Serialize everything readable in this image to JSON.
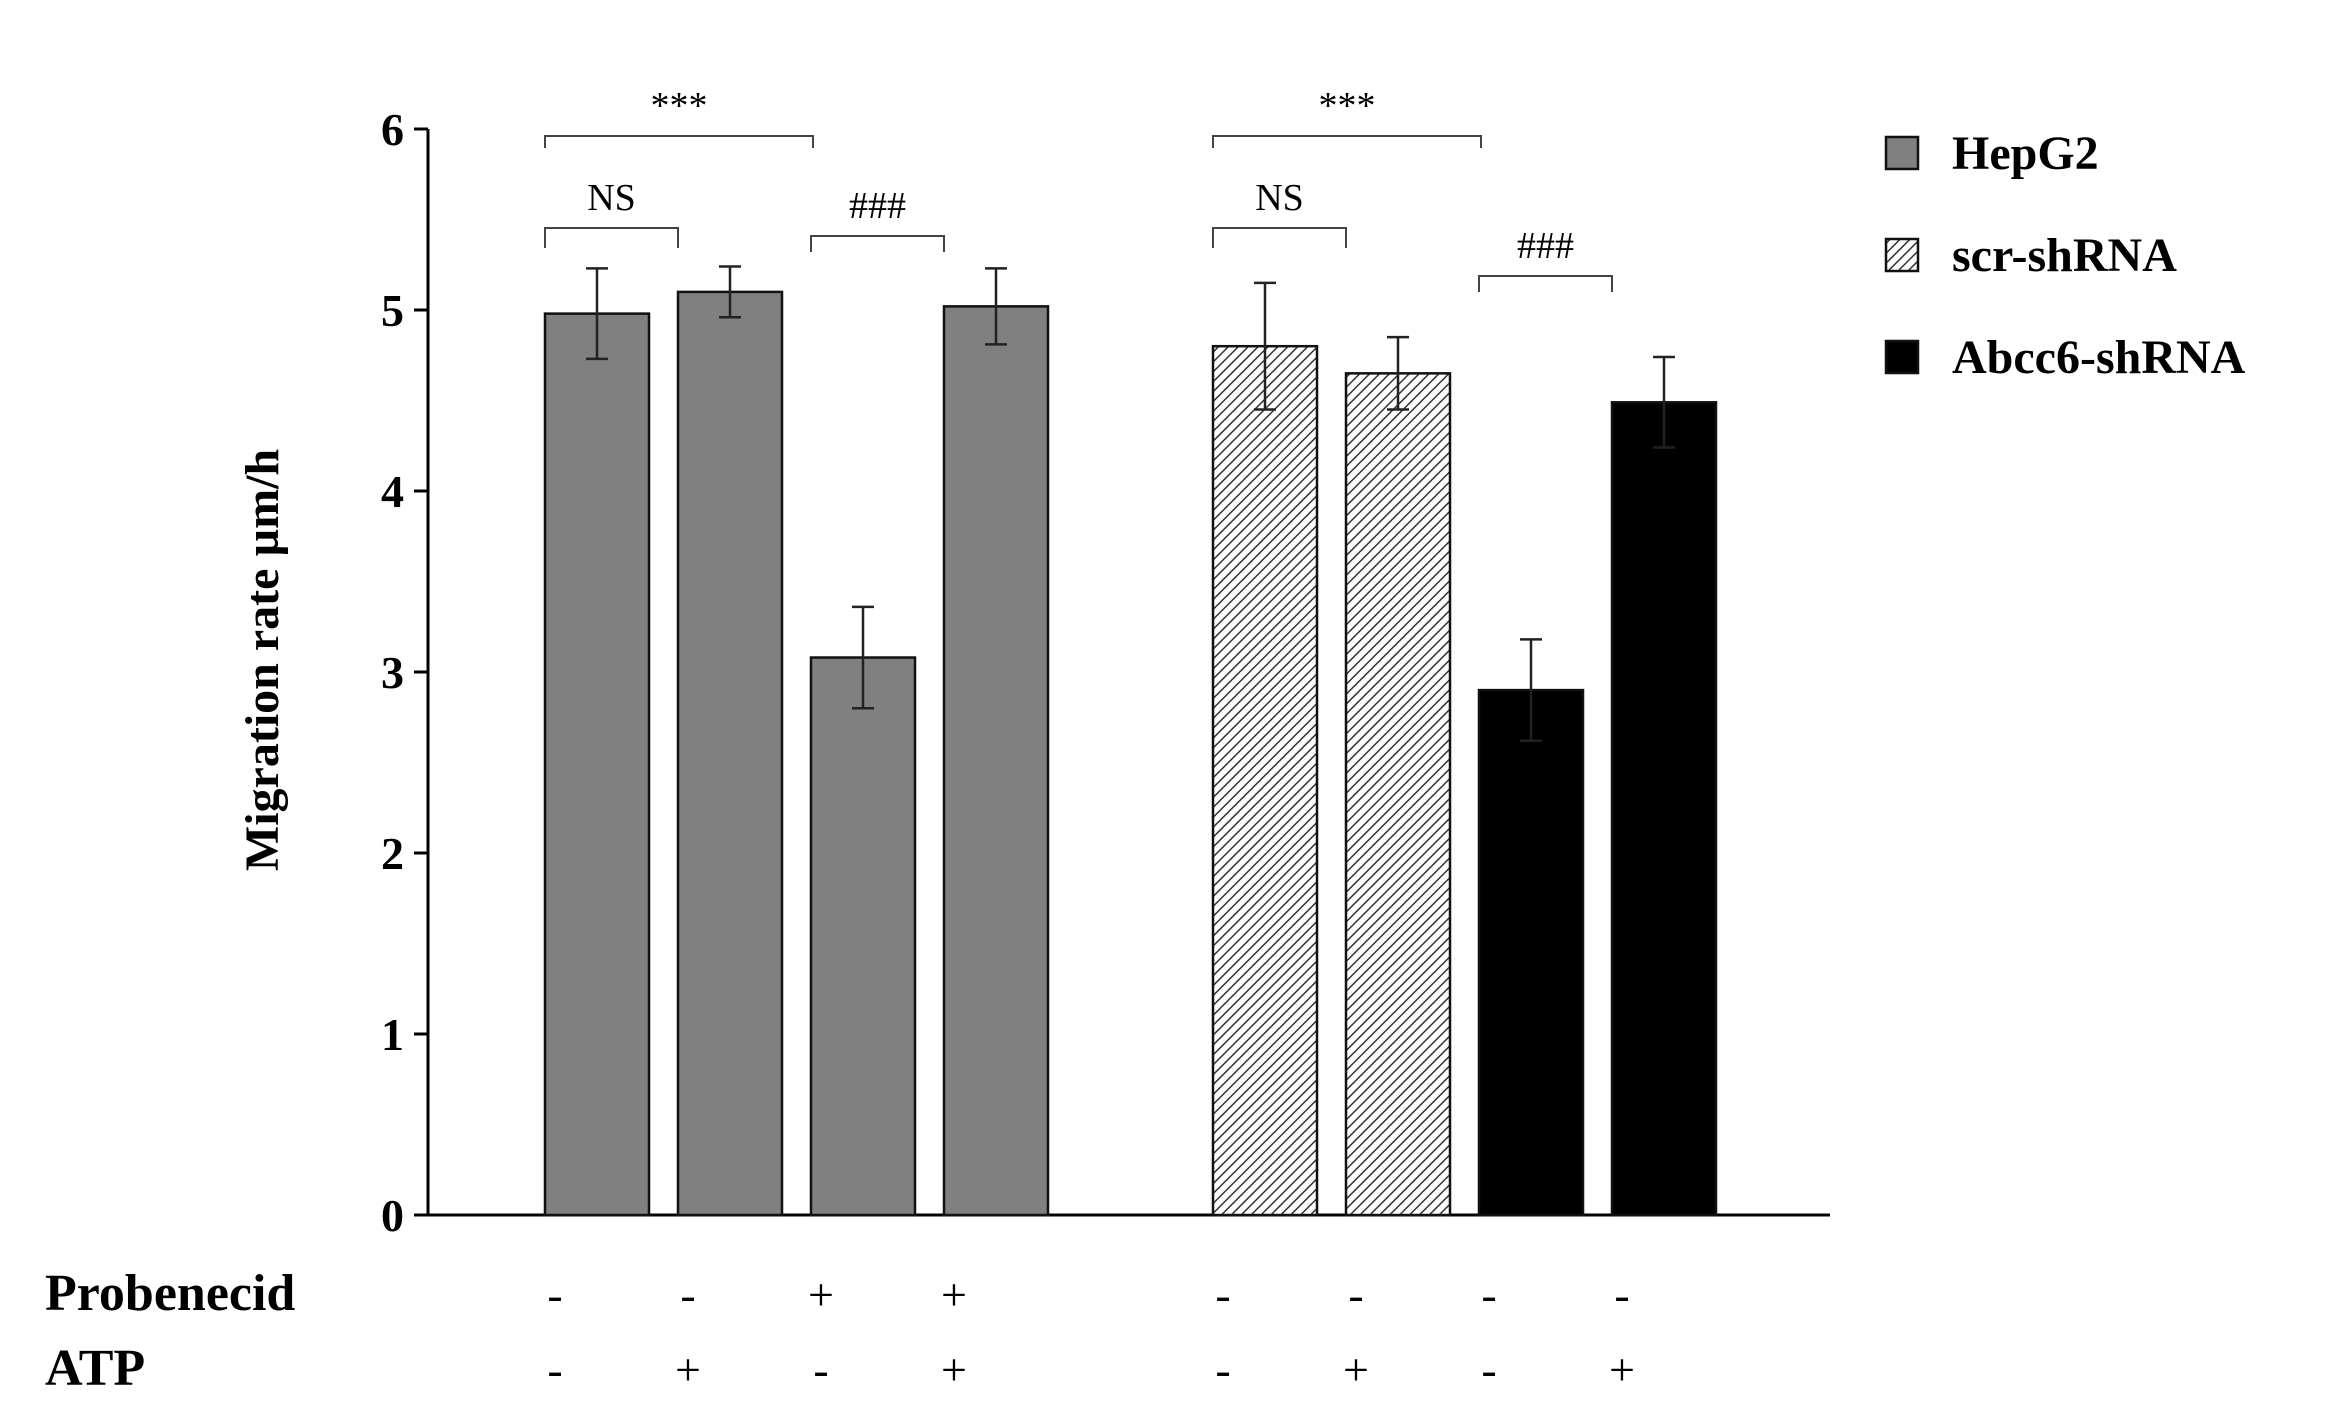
{
  "chart_data": {
    "type": "bar",
    "xlabel": "",
    "ylabel": "Migration rate µm/h",
    "ylim": [
      0,
      6
    ],
    "yticks": [
      "0",
      "1",
      "2",
      "3",
      "4",
      "5",
      "6"
    ],
    "grid": false,
    "legend_position": "right",
    "legend": [
      {
        "name": "HepG2",
        "color": "#808080",
        "pattern": "solid"
      },
      {
        "name": "scr-shRNA",
        "color": "#ffffff",
        "pattern": "hatched"
      },
      {
        "name": "Abcc6-shRNA",
        "color": "#000000",
        "pattern": "solid"
      }
    ],
    "bars": [
      {
        "series": "HepG2",
        "value": 4.98,
        "error": 0.25,
        "probenecid": "-",
        "atp": "-"
      },
      {
        "series": "HepG2",
        "value": 5.1,
        "error": 0.14,
        "probenecid": "-",
        "atp": "+"
      },
      {
        "series": "HepG2",
        "value": 3.08,
        "error": 0.28,
        "probenecid": "+",
        "atp": "-"
      },
      {
        "series": "HepG2",
        "value": 5.02,
        "error": 0.21,
        "probenecid": "+",
        "atp": "+"
      },
      {
        "series": "scr-shRNA",
        "value": 4.8,
        "error": 0.35,
        "probenecid": "-",
        "atp": "-"
      },
      {
        "series": "scr-shRNA",
        "value": 4.65,
        "error": 0.2,
        "probenecid": "-",
        "atp": "+"
      },
      {
        "series": "Abcc6-shRNA",
        "value": 2.9,
        "error": 0.28,
        "probenecid": "-",
        "atp": "-"
      },
      {
        "series": "Abcc6-shRNA",
        "value": 4.49,
        "error": 0.25,
        "probenecid": "-",
        "atp": "+"
      }
    ],
    "row_labels": {
      "probenecid": "Probenecid",
      "atp": "ATP"
    },
    "significance": [
      {
        "label": "***",
        "from": 0,
        "to": 2,
        "level": 0
      },
      {
        "label": "NS",
        "from": 0,
        "to": 1,
        "level": 1
      },
      {
        "label": "###",
        "from": 2,
        "to": 3,
        "level": 2
      },
      {
        "label": "***",
        "from": 4,
        "to": 6,
        "level": 0
      },
      {
        "label": "NS",
        "from": 4,
        "to": 5,
        "level": 1
      },
      {
        "label": "###",
        "from": 6,
        "to": 7,
        "level": 3
      }
    ]
  }
}
